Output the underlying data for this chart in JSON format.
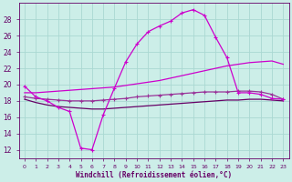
{
  "bg_color": "#cceee8",
  "grid_color": "#aad8d2",
  "line_color_bright": "#cc00cc",
  "line_color_mid": "#993399",
  "line_color_dark": "#660066",
  "xlabel": "Windchill (Refroidissement éolien,°C)",
  "xlabel_color": "#660066",
  "tick_color": "#660066",
  "xlim": [
    -0.5,
    23.5
  ],
  "ylim": [
    11,
    30
  ],
  "yticks": [
    12,
    14,
    16,
    18,
    20,
    22,
    24,
    26,
    28
  ],
  "xticks": [
    0,
    1,
    2,
    3,
    4,
    5,
    6,
    7,
    8,
    9,
    10,
    11,
    12,
    13,
    14,
    15,
    16,
    17,
    18,
    19,
    20,
    21,
    22,
    23
  ],
  "curve1_x": [
    0,
    1,
    2,
    3,
    4,
    5,
    6,
    7,
    8,
    9,
    10,
    11,
    12,
    13,
    14,
    15,
    16,
    17,
    18,
    19,
    20,
    21,
    22,
    23
  ],
  "curve1_y": [
    19.8,
    18.5,
    18.0,
    17.2,
    16.7,
    12.2,
    12.0,
    16.3,
    19.6,
    22.8,
    25.0,
    26.5,
    27.2,
    27.8,
    28.8,
    29.2,
    28.5,
    25.8,
    23.3,
    19.0,
    19.0,
    18.8,
    18.3,
    18.2
  ],
  "curve2_x": [
    0,
    1,
    2,
    3,
    4,
    5,
    6,
    7,
    8,
    9,
    10,
    11,
    12,
    13,
    14,
    15,
    16,
    17,
    18,
    19,
    20,
    21,
    22,
    23
  ],
  "curve2_y": [
    19.0,
    19.0,
    19.1,
    19.2,
    19.3,
    19.4,
    19.5,
    19.6,
    19.7,
    19.9,
    20.1,
    20.3,
    20.5,
    20.8,
    21.1,
    21.4,
    21.7,
    22.0,
    22.3,
    22.5,
    22.7,
    22.8,
    22.9,
    22.5
  ],
  "curve3_x": [
    0,
    1,
    2,
    3,
    4,
    5,
    6,
    7,
    8,
    9,
    10,
    11,
    12,
    13,
    14,
    15,
    16,
    17,
    18,
    19,
    20,
    21,
    22,
    23
  ],
  "curve3_y": [
    18.5,
    18.3,
    18.2,
    18.1,
    18.0,
    18.0,
    18.0,
    18.1,
    18.2,
    18.3,
    18.5,
    18.6,
    18.7,
    18.8,
    18.9,
    19.0,
    19.1,
    19.1,
    19.1,
    19.2,
    19.2,
    19.1,
    18.8,
    18.2
  ],
  "curve4_x": [
    0,
    1,
    2,
    3,
    4,
    5,
    6,
    7,
    8,
    9,
    10,
    11,
    12,
    13,
    14,
    15,
    16,
    17,
    18,
    19,
    20,
    21,
    22,
    23
  ],
  "curve4_y": [
    18.2,
    17.8,
    17.5,
    17.3,
    17.2,
    17.1,
    17.0,
    17.0,
    17.1,
    17.2,
    17.3,
    17.4,
    17.5,
    17.6,
    17.7,
    17.8,
    17.9,
    18.0,
    18.1,
    18.1,
    18.2,
    18.2,
    18.1,
    18.0
  ]
}
